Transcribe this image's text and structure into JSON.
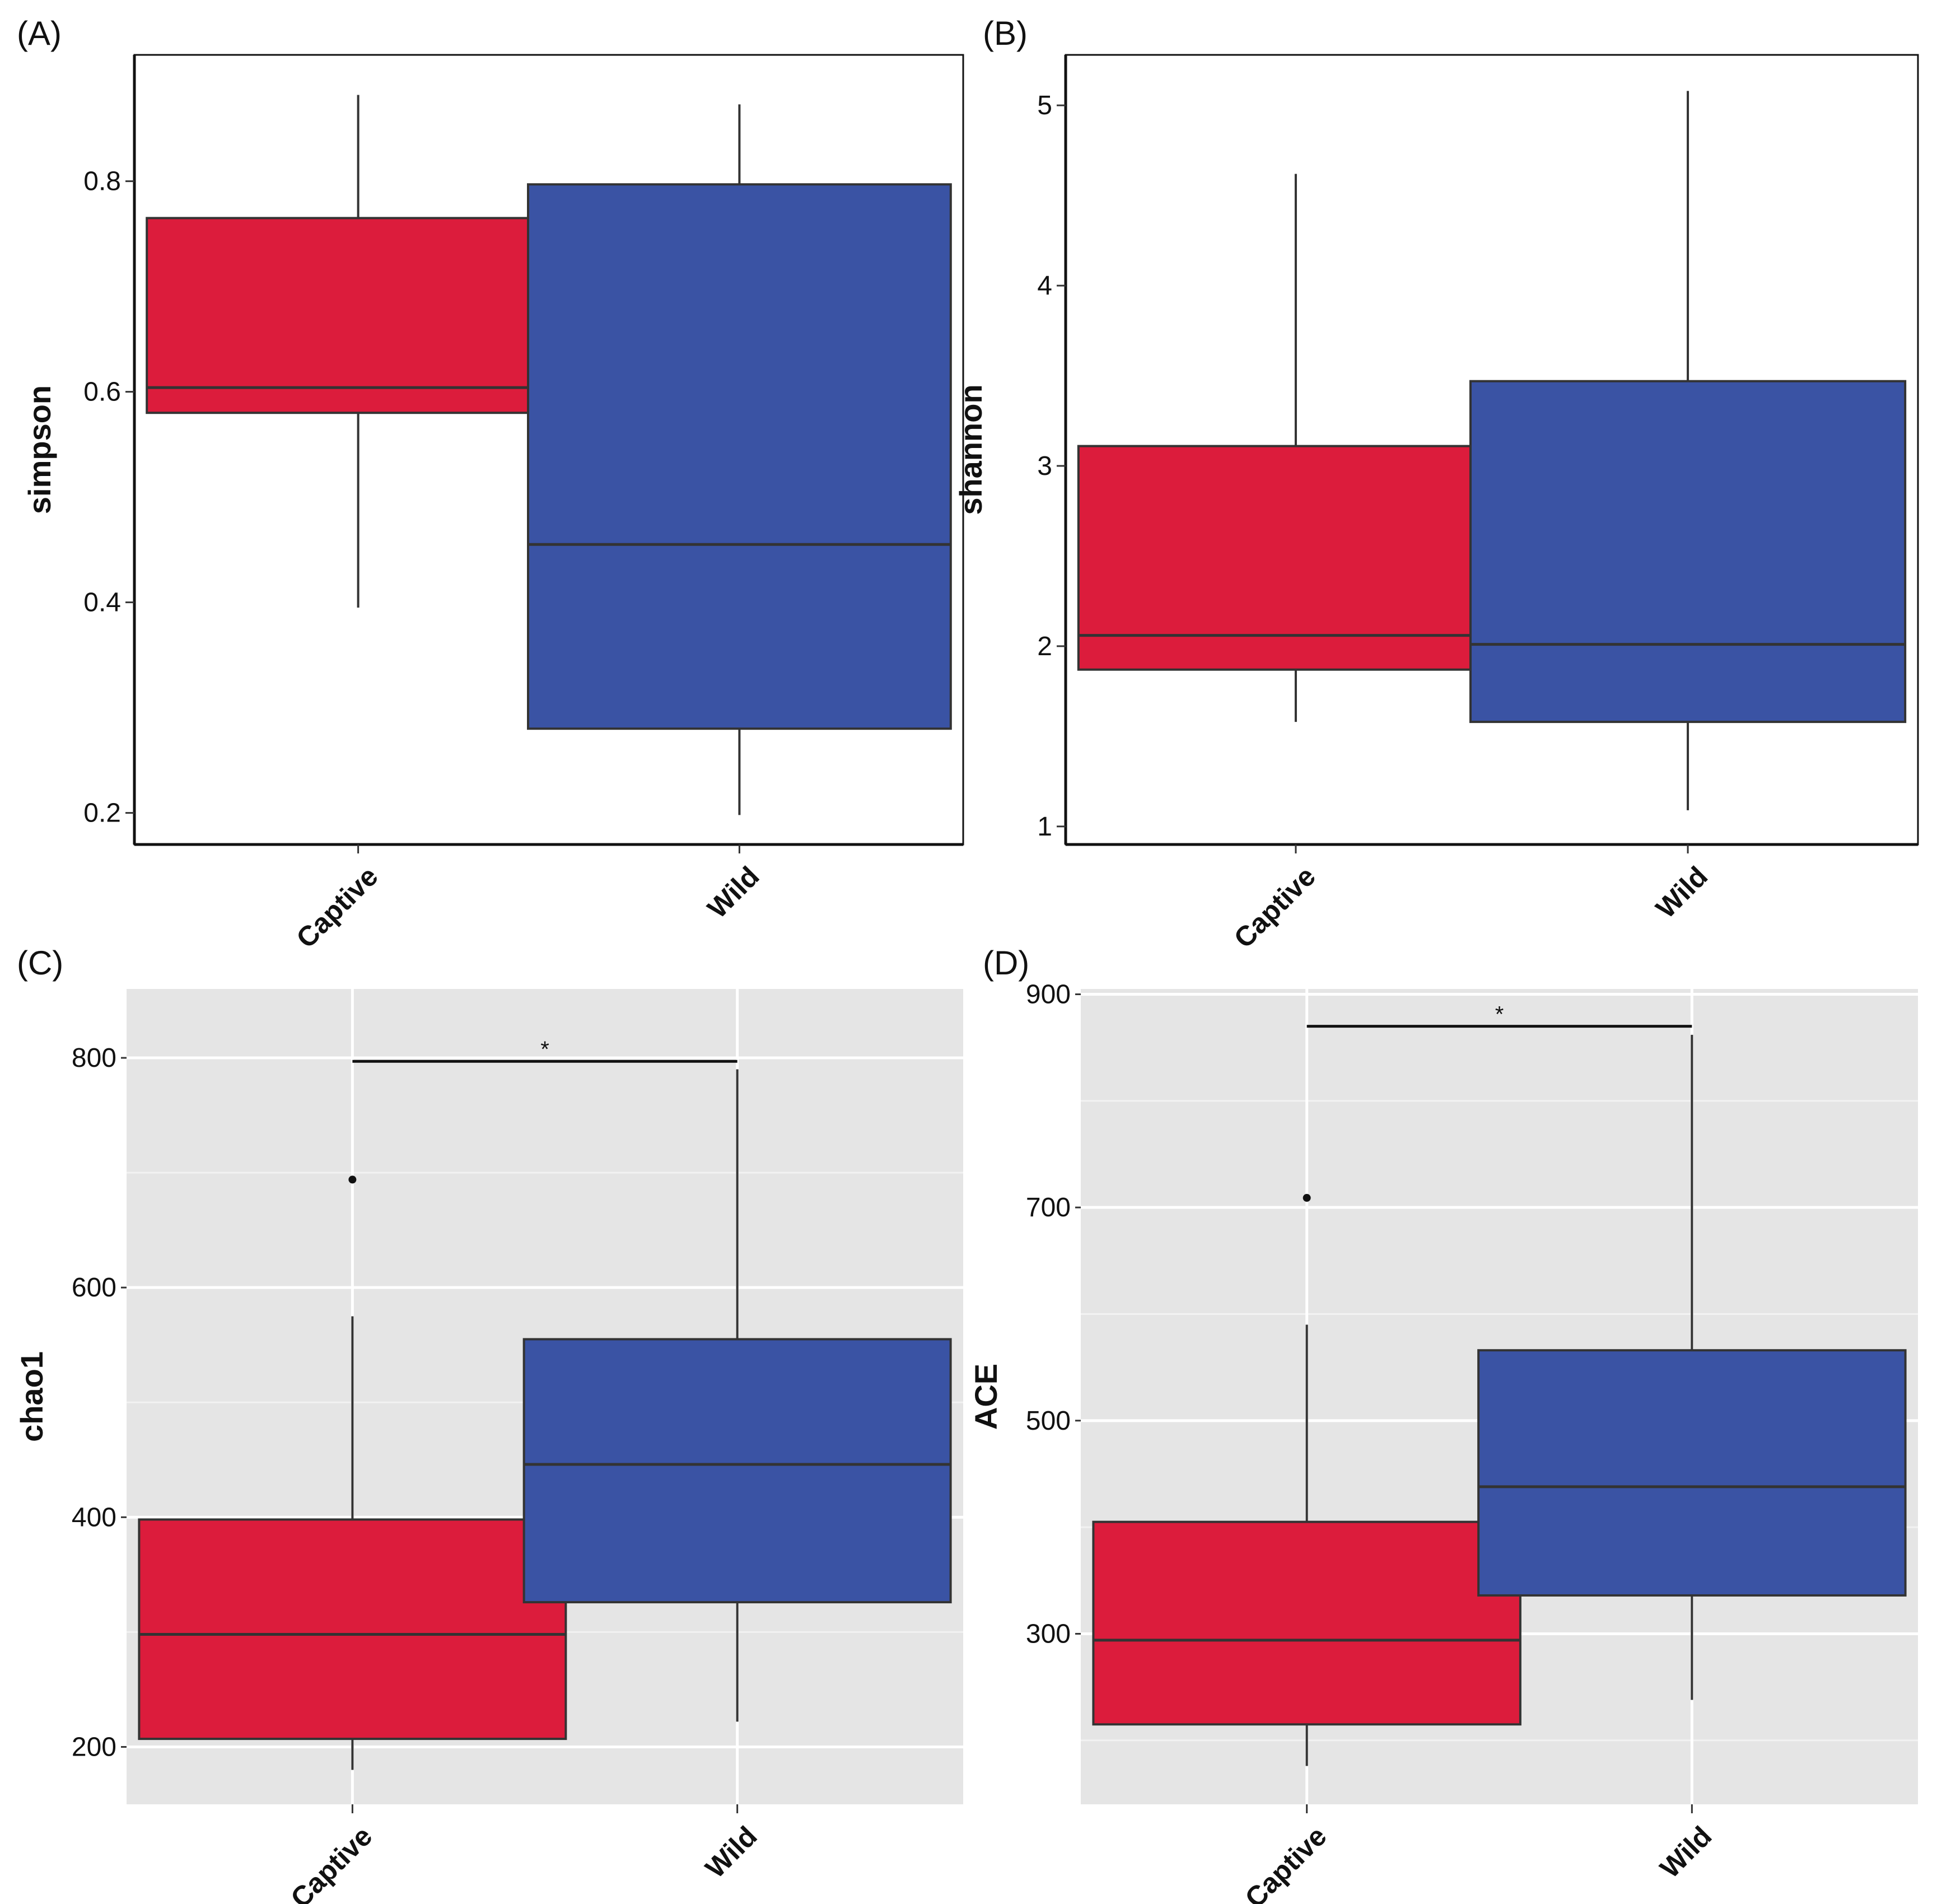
{
  "chart_data": [
    {
      "id": "A",
      "panel_label": "(A)",
      "type": "box",
      "style": "classic",
      "title": "",
      "xlabel": "",
      "ylabel": "simpson",
      "categories": [
        "Captive",
        "Wild"
      ],
      "ylim": [
        0.17,
        0.92
      ],
      "yticks": [
        0.2,
        0.4,
        0.6,
        0.8
      ],
      "ytick_labels": [
        "0.2",
        "0.4",
        "0.6",
        "0.8"
      ],
      "grid": false,
      "boxes": [
        {
          "category": "Captive",
          "min": 0.395,
          "q1": 0.58,
          "median": 0.604,
          "q3": 0.765,
          "max": 0.882,
          "outliers": [],
          "color": "#DC1C3C"
        },
        {
          "category": "Wild",
          "min": 0.198,
          "q1": 0.28,
          "median": 0.455,
          "q3": 0.797,
          "max": 0.873,
          "outliers": [],
          "color": "#3A53A4"
        }
      ],
      "significance": null
    },
    {
      "id": "B",
      "panel_label": "(B)",
      "type": "box",
      "style": "classic",
      "title": "",
      "xlabel": "",
      "ylabel": "shannon",
      "categories": [
        "Captive",
        "Wild"
      ],
      "ylim": [
        0.9,
        5.28
      ],
      "yticks": [
        1,
        2,
        3,
        4,
        5
      ],
      "ytick_labels": [
        "1",
        "2",
        "3",
        "4",
        "5"
      ],
      "grid": false,
      "boxes": [
        {
          "category": "Captive",
          "min": 1.58,
          "q1": 1.87,
          "median": 2.06,
          "q3": 3.11,
          "max": 4.62,
          "outliers": [],
          "color": "#DC1C3C"
        },
        {
          "category": "Wild",
          "min": 1.09,
          "q1": 1.58,
          "median": 2.01,
          "q3": 3.47,
          "max": 5.08,
          "outliers": [],
          "color": "#3A53A4"
        }
      ],
      "significance": null
    },
    {
      "id": "C",
      "panel_label": "(C)",
      "type": "box",
      "style": "ggplot",
      "title": "",
      "xlabel": "",
      "ylabel": "chao1",
      "categories": [
        "Captive",
        "Wild"
      ],
      "ylim": [
        150,
        860
      ],
      "yticks": [
        200,
        400,
        600,
        800
      ],
      "ytick_labels": [
        "200",
        "400",
        "600",
        "800"
      ],
      "minor_yticks": [
        300,
        500,
        700
      ],
      "grid": true,
      "boxes": [
        {
          "category": "Captive",
          "min": 180,
          "q1": 207,
          "median": 298,
          "q3": 398,
          "max": 575,
          "outliers": [
            694
          ],
          "color": "#DC1C3C"
        },
        {
          "category": "Wild",
          "min": 222,
          "q1": 326,
          "median": 446,
          "q3": 555,
          "max": 790,
          "outliers": [],
          "color": "#3A53A4"
        }
      ],
      "significance": {
        "from": "Captive",
        "to": "Wild",
        "y": 797,
        "label": "*"
      }
    },
    {
      "id": "D",
      "panel_label": "(D)",
      "type": "box",
      "style": "ggplot",
      "title": "",
      "xlabel": "",
      "ylabel": "ACE",
      "categories": [
        "Captive",
        "Wild"
      ],
      "ylim": [
        140,
        905
      ],
      "yticks": [
        300,
        500,
        700,
        900
      ],
      "ytick_labels": [
        "300",
        "500",
        "700",
        "900"
      ],
      "minor_yticks": [
        200,
        400,
        600,
        800
      ],
      "grid": true,
      "boxes": [
        {
          "category": "Captive",
          "min": 176,
          "q1": 215,
          "median": 294,
          "q3": 405,
          "max": 590,
          "outliers": [
            709
          ],
          "color": "#DC1C3C"
        },
        {
          "category": "Wild",
          "min": 238,
          "q1": 336,
          "median": 438,
          "q3": 566,
          "max": 862,
          "outliers": [],
          "color": "#3A53A4"
        }
      ],
      "significance": {
        "from": "Captive",
        "to": "Wild",
        "y": 870,
        "label": "*"
      }
    }
  ]
}
